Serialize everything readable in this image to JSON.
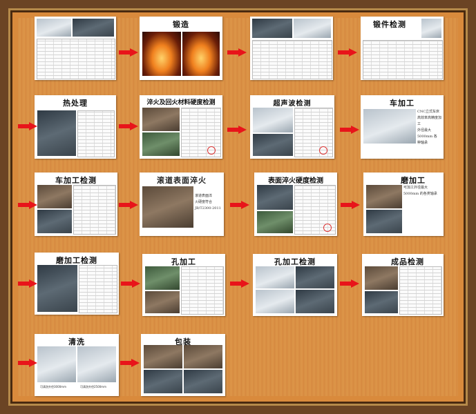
{
  "steps": {
    "s1": {
      "title": ""
    },
    "s2": {
      "title": "锻造"
    },
    "s3": {
      "title": ""
    },
    "s4": {
      "title": "锻件检测"
    },
    "s5": {
      "title": "热处理"
    },
    "s6": {
      "title": "淬火及回火材料硬度检测"
    },
    "s7": {
      "title": "超声波检测"
    },
    "s8": {
      "title": "车加工",
      "text": "CNC立式车床 \n高效率高精度加工 \n外径最大5000mm 各\n种轴承"
    },
    "s9": {
      "title": "车加工检测"
    },
    "s10": {
      "title": "滚道表面淬火",
      "text": "滚道表面淬\n火硬度符合\nJB/T2300-2011"
    },
    "s11": {
      "title": "表面淬火硬度检测"
    },
    "s12": {
      "title": "磨加工",
      "text": "可加工外径最大\n5000mm 的各类轴承"
    },
    "s13": {
      "title": "磨加工检测"
    },
    "s14": {
      "title": "孔加工"
    },
    "s15": {
      "title": "孔加工检测"
    },
    "s16": {
      "title": "成品检测"
    },
    "s17": {
      "title": "清洗",
      "caption_left": "可清洗外径3000mm",
      "caption_right": "可清洗外径2500mm"
    },
    "s18": {
      "title": "包装"
    }
  },
  "colors": {
    "arrow": "#e8141a",
    "board": "#d98a3c",
    "frame": "#6b4424"
  }
}
